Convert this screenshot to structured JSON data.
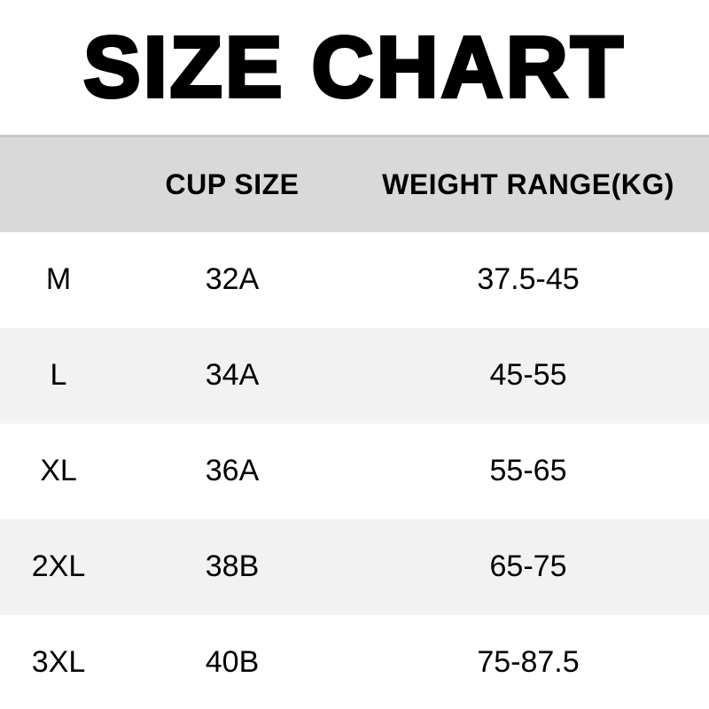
{
  "title": "SIZE CHART",
  "table": {
    "columns": [
      {
        "label": ""
      },
      {
        "label": "CUP SIZE"
      },
      {
        "label": "WEIGHT RANGE(KG)"
      }
    ],
    "rows": [
      {
        "size": "M",
        "cup": "32A",
        "weight": "37.5-45"
      },
      {
        "size": "L",
        "cup": "34A",
        "weight": "45-55"
      },
      {
        "size": "XL",
        "cup": "36A",
        "weight": "55-65"
      },
      {
        "size": "2XL",
        "cup": "38B",
        "weight": "65-75"
      },
      {
        "size": "3XL",
        "cup": "40B",
        "weight": "75-87.5"
      }
    ]
  },
  "colors": {
    "page_bg": "#ffffff",
    "header_bg": "#d9d9d9",
    "header_border_top": "#c9c9c9",
    "row_alt_bg": "#f2f2f2",
    "text": "#000000"
  },
  "chart_data": {
    "type": "table",
    "title": "SIZE CHART",
    "columns": [
      "",
      "CUP SIZE",
      "WEIGHT RANGE(KG)"
    ],
    "rows": [
      [
        "M",
        "32A",
        "37.5-45"
      ],
      [
        "L",
        "34A",
        "45-55"
      ],
      [
        "XL",
        "36A",
        "55-65"
      ],
      [
        "2XL",
        "38B",
        "65-75"
      ],
      [
        "3XL",
        "40B",
        "75-87.5"
      ]
    ],
    "layout_hints": {
      "header_background": "#d9d9d9",
      "alternating_row_background": "#f2f2f2",
      "alignment": "center",
      "grid": "off"
    }
  }
}
